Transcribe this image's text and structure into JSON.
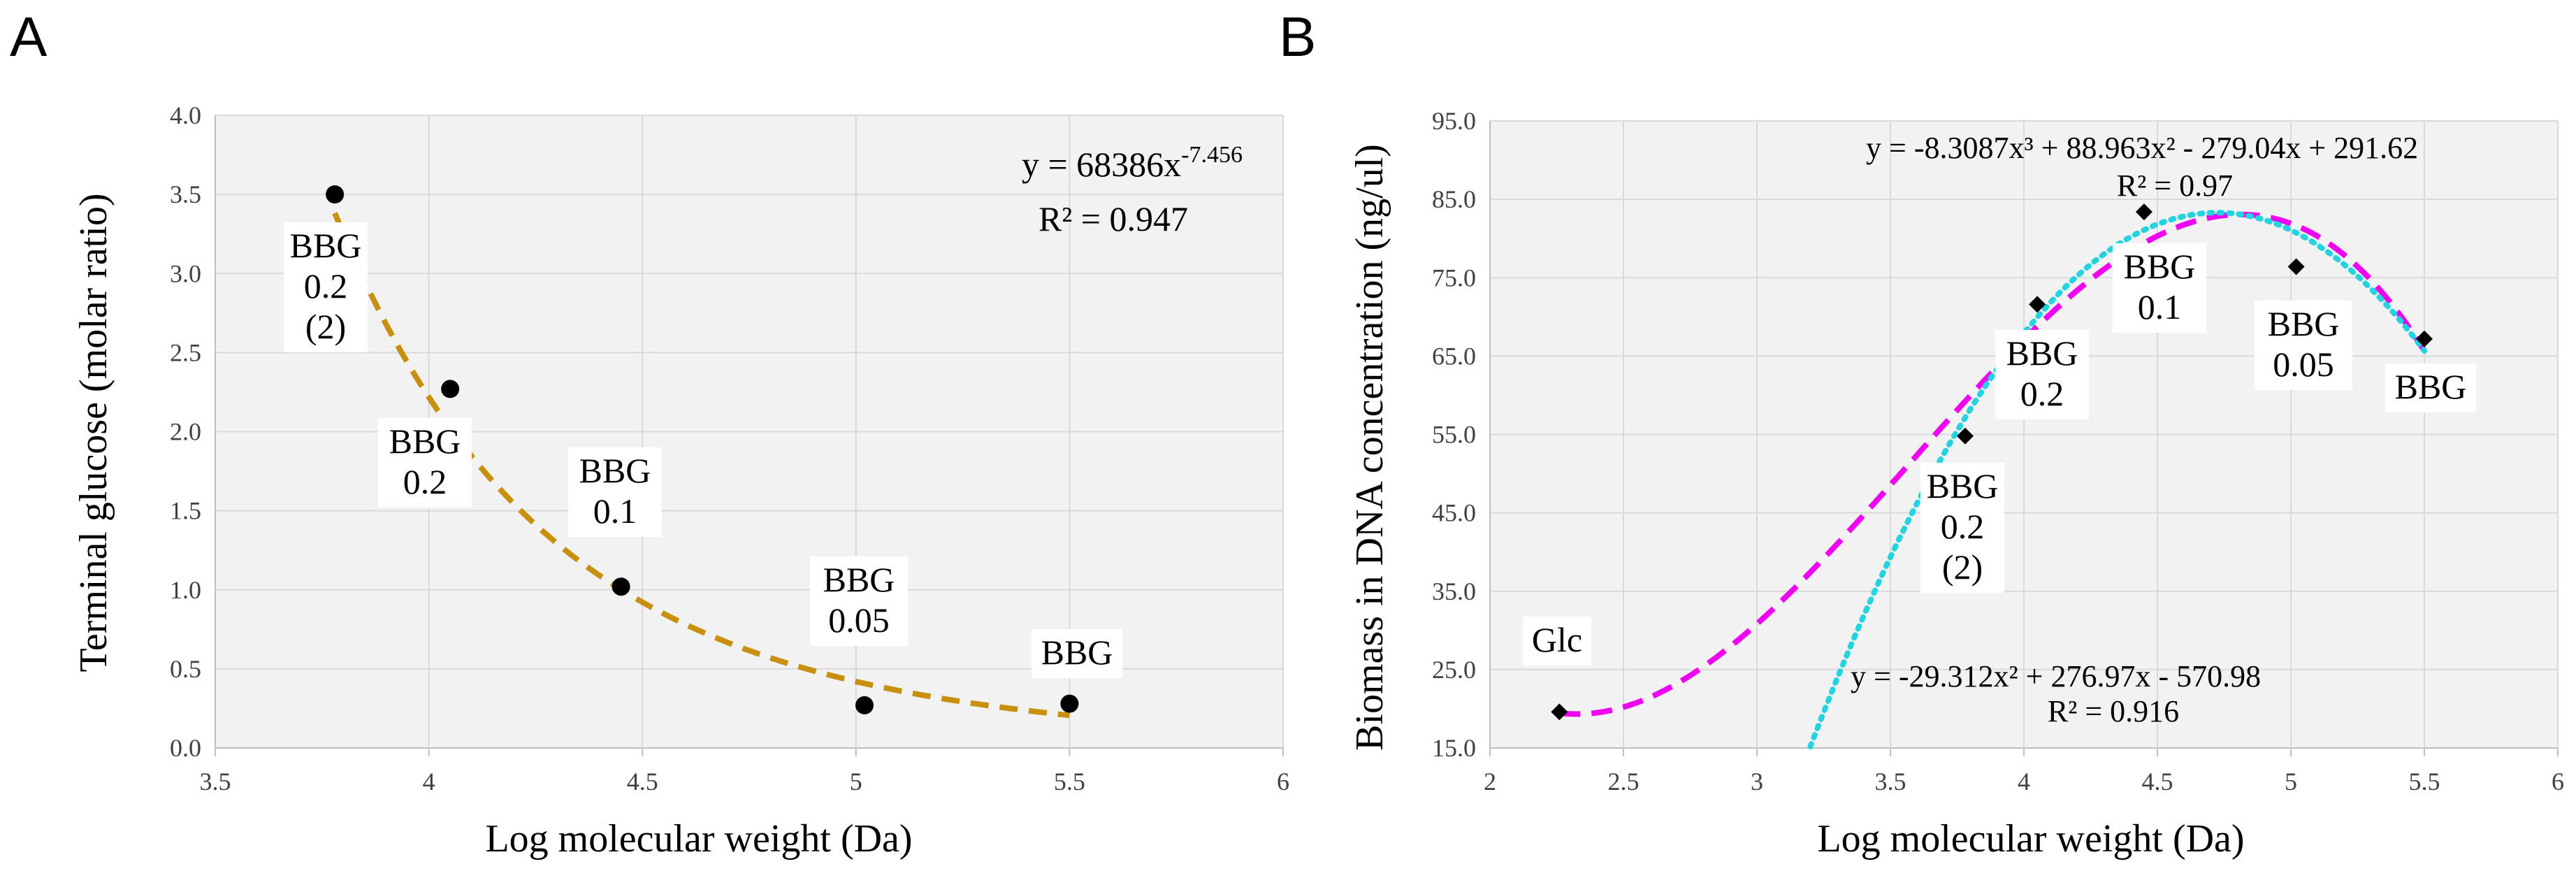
{
  "chart_data": [
    {
      "panel": "A",
      "type": "scatter",
      "xlabel": "Log molecular weight (Da)",
      "ylabel": "Terminal glucose (molar ratio)",
      "xlim": [
        3.5,
        6
      ],
      "ylim": [
        0,
        4
      ],
      "x_ticks": [
        "3.5",
        "4",
        "4.5",
        "5",
        "5.5",
        "6"
      ],
      "y_ticks": [
        "0.0",
        "0.5",
        "1.0",
        "1.5",
        "2.0",
        "2.5",
        "3.0",
        "3.5",
        "4.0"
      ],
      "grid": true,
      "series": [
        {
          "name": "data",
          "x": [
            3.78,
            4.05,
            4.45,
            5.02,
            5.5
          ],
          "y": [
            3.5,
            2.27,
            1.02,
            0.27,
            0.28
          ]
        }
      ],
      "point_labels": [
        {
          "lines": [
            "BBG",
            "0.2",
            "(2)"
          ],
          "x": 3.78,
          "y": 3.5
        },
        {
          "lines": [
            "BBG",
            "0.2"
          ],
          "x": 4.05,
          "y": 2.27
        },
        {
          "lines": [
            "BBG",
            "0.1"
          ],
          "x": 4.45,
          "y": 1.02
        },
        {
          "lines": [
            "BBG",
            "0.05"
          ],
          "x": 5.02,
          "y": 0.27
        },
        {
          "lines": [
            "BBG"
          ],
          "x": 5.5,
          "y": 0.28
        }
      ],
      "trendline": {
        "type": "power",
        "a": 68386,
        "b": -7.456,
        "x_range": [
          3.78,
          5.5
        ],
        "color": "#c8900e"
      },
      "equation": {
        "prefix": "y = 68386x",
        "exponent": "-7.456",
        "r2": "R² = 0.947"
      }
    },
    {
      "panel": "B",
      "type": "scatter",
      "xlabel": "Log molecular weight (Da)",
      "ylabel": "Biomass in DNA concentration (ng/ul)",
      "xlim": [
        2,
        6
      ],
      "ylim": [
        15,
        95
      ],
      "x_ticks": [
        "2",
        "2.5",
        "3",
        "3.5",
        "4",
        "4.5",
        "5",
        "5.5",
        "6"
      ],
      "y_ticks": [
        "15.0",
        "25.0",
        "35.0",
        "45.0",
        "55.0",
        "65.0",
        "75.0",
        "85.0",
        "95.0"
      ],
      "grid": true,
      "series": [
        {
          "name": "data",
          "x": [
            2.26,
            3.78,
            4.05,
            4.45,
            5.02,
            5.5
          ],
          "y": [
            19.6,
            54.8,
            71.6,
            83.4,
            76.4,
            67.2
          ]
        }
      ],
      "point_labels": [
        {
          "lines": [
            "Glc"
          ],
          "x": 2.26,
          "y": 19.6
        },
        {
          "lines": [
            "BBG",
            "0.2",
            "(2)"
          ],
          "x": 3.78,
          "y": 54.8
        },
        {
          "lines": [
            "BBG",
            "0.2"
          ],
          "x": 4.05,
          "y": 71.6
        },
        {
          "lines": [
            "BBG",
            "0.1"
          ],
          "x": 4.45,
          "y": 83.4
        },
        {
          "lines": [
            "BBG",
            "0.05"
          ],
          "x": 5.02,
          "y": 76.4
        },
        {
          "lines": [
            "BBG"
          ],
          "x": 5.5,
          "y": 67.2
        }
      ],
      "trendlines": [
        {
          "type": "poly3",
          "coef": [
            -8.3087,
            88.963,
            -279.04,
            291.62
          ],
          "x_range": [
            2.26,
            5.5
          ],
          "color": "#f000f0",
          "style": "dashed"
        },
        {
          "type": "poly2",
          "coef": [
            -29.312,
            276.97,
            -570.98
          ],
          "x_range": [
            3.2,
            5.5
          ],
          "color": "#22d3e0",
          "style": "dotted"
        }
      ],
      "equation_cubic": {
        "text": "y = -8.3087x³ + 88.963x² - 279.04x + 291.62",
        "r2": "R² = 0.97"
      },
      "equation_quadratic": {
        "text": "y = -29.312x² + 276.97x - 570.98",
        "r2": "R² = 0.916"
      }
    }
  ]
}
